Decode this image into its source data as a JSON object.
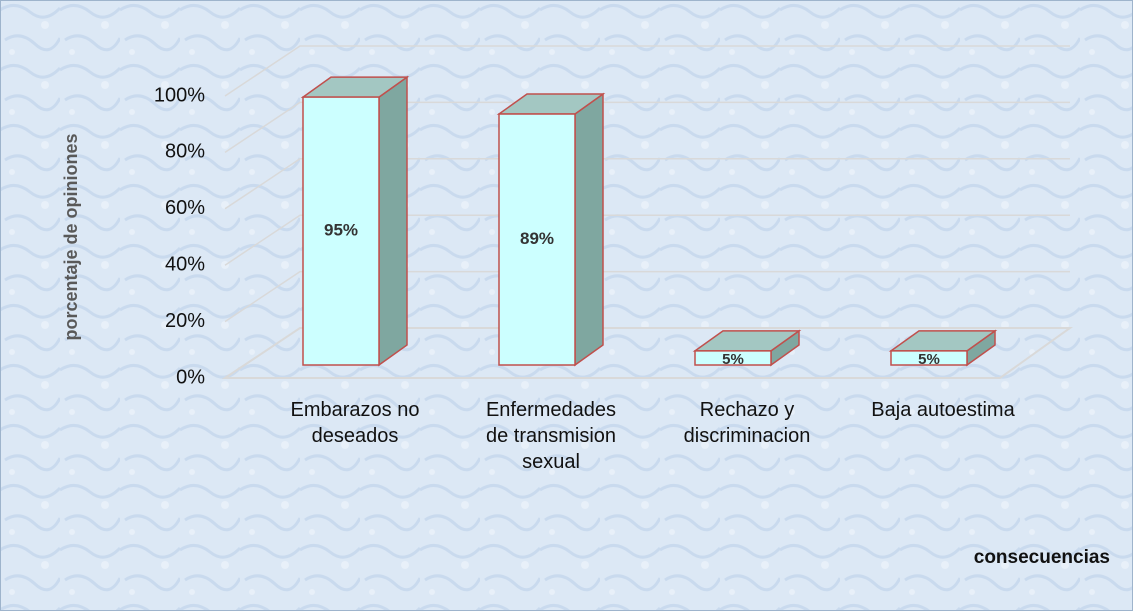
{
  "chart_data": {
    "type": "bar",
    "categories": [
      "Embarazos no deseados",
      "Enfermedades de transmision sexual",
      "Rechazo y discriminacion",
      "Baja autoestima"
    ],
    "values": [
      95,
      89,
      5,
      5
    ],
    "value_labels": [
      "95%",
      "89%",
      "5%",
      "5%"
    ],
    "ylim": [
      0,
      100
    ],
    "yticks": [
      {
        "value": 0,
        "label": "0%"
      },
      {
        "value": 20,
        "label": "20%"
      },
      {
        "value": 40,
        "label": "40%"
      },
      {
        "value": 60,
        "label": "60%"
      },
      {
        "value": 80,
        "label": "80%"
      },
      {
        "value": 100,
        "label": "100%"
      }
    ],
    "y_label": "porcentaje de opiniones",
    "x_label": "consecuencias",
    "grid": true,
    "color": "#ccffff"
  }
}
